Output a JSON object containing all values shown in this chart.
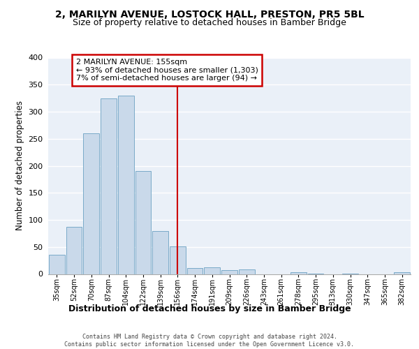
{
  "title1": "2, MARILYN AVENUE, LOSTOCK HALL, PRESTON, PR5 5BL",
  "title2": "Size of property relative to detached houses in Bamber Bridge",
  "xlabel": "Distribution of detached houses by size in Bamber Bridge",
  "ylabel": "Number of detached properties",
  "bar_labels": [
    "35sqm",
    "52sqm",
    "70sqm",
    "87sqm",
    "104sqm",
    "122sqm",
    "139sqm",
    "156sqm",
    "174sqm",
    "191sqm",
    "209sqm",
    "226sqm",
    "243sqm",
    "261sqm",
    "278sqm",
    "295sqm",
    "313sqm",
    "330sqm",
    "347sqm",
    "365sqm",
    "382sqm"
  ],
  "bar_values": [
    35,
    87,
    260,
    325,
    330,
    190,
    80,
    51,
    11,
    12,
    7,
    9,
    0,
    0,
    3,
    1,
    0,
    1,
    0,
    0,
    3
  ],
  "bar_color": "#c9d9ea",
  "bar_edge_color": "#7aaac8",
  "vline_x_index": 7,
  "vline_color": "#cc0000",
  "annotation_text": "2 MARILYN AVENUE: 155sqm\n← 93% of detached houses are smaller (1,303)\n7% of semi-detached houses are larger (94) →",
  "annotation_box_facecolor": "#ffffff",
  "annotation_box_edgecolor": "#cc0000",
  "ylim": [
    0,
    400
  ],
  "yticks": [
    0,
    50,
    100,
    150,
    200,
    250,
    300,
    350,
    400
  ],
  "bg_color": "#eaf0f8",
  "grid_color": "#c8d8ea",
  "footer_text": "Contains HM Land Registry data © Crown copyright and database right 2024.\nContains public sector information licensed under the Open Government Licence v3.0.",
  "title1_fontsize": 10,
  "title2_fontsize": 9,
  "xlabel_fontsize": 9,
  "ylabel_fontsize": 8.5,
  "tick_fontsize": 8,
  "annot_fontsize": 8
}
